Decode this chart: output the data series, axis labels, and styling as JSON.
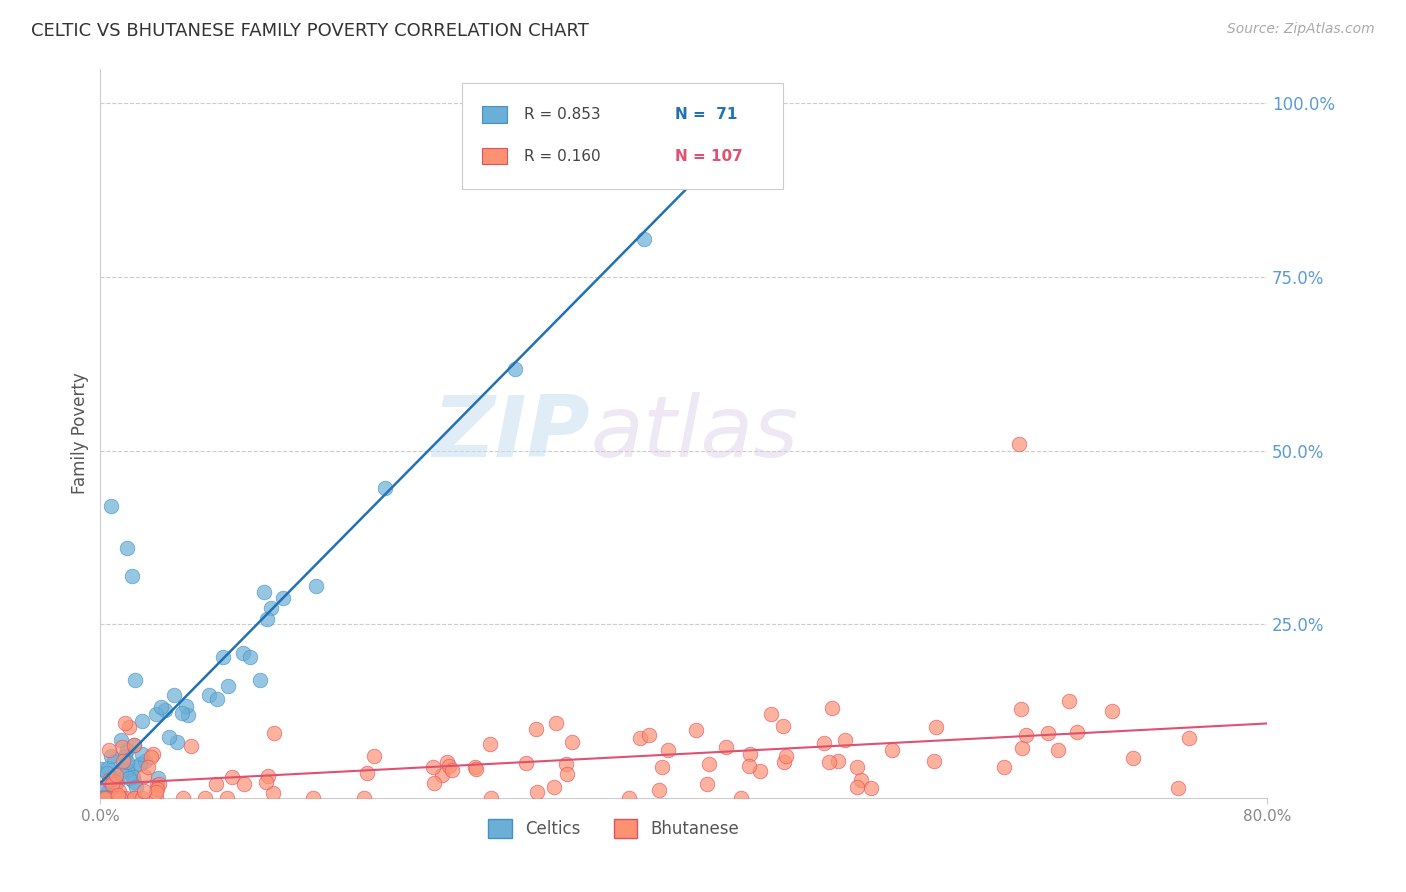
{
  "title": "CELTIC VS BHUTANESE FAMILY POVERTY CORRELATION CHART",
  "source": "Source: ZipAtlas.com",
  "ylabel": "Family Poverty",
  "xlim": [
    0.0,
    0.8
  ],
  "ylim": [
    0.0,
    1.05
  ],
  "ytick_right": [
    0.0,
    0.25,
    0.5,
    0.75,
    1.0
  ],
  "ytick_right_labels": [
    "",
    "25.0%",
    "50.0%",
    "75.0%",
    "100.0%"
  ],
  "celtics_color": "#6baed6",
  "celtics_edge_color": "#4292c6",
  "bhutanese_color": "#fc9272",
  "bhutanese_edge_color": "#e05060",
  "celtics_line_color": "#2171b5",
  "bhutanese_line_color": "#e05070",
  "legend_r_celtics": "R = 0.853",
  "legend_n_celtics": "N =  71",
  "legend_r_bhutanese": "R = 0.160",
  "legend_n_bhutanese": "N = 107",
  "celtics_N": 71,
  "bhutanese_N": 107,
  "watermark_zip": "ZIP",
  "watermark_atlas": "atlas",
  "background_color": "#ffffff",
  "grid_color": "#cccccc",
  "title_color": "#333333",
  "axis_label_color": "#555555",
  "right_tick_color": "#5b9bd5",
  "celtics_scatter_seed": 42,
  "bhutanese_scatter_seed": 123
}
